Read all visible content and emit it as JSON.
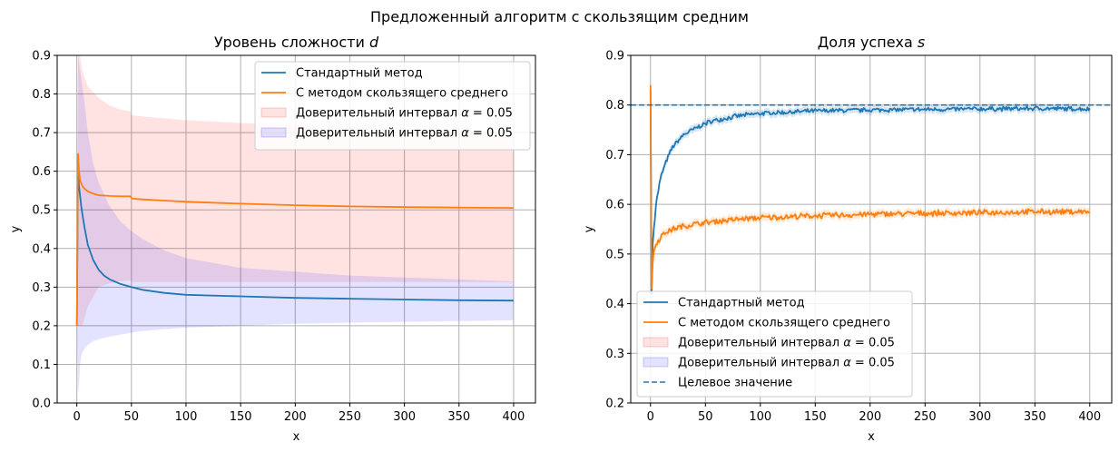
{
  "suptitle": "Предложенный алгоритм с скользящим средним",
  "colors": {
    "standard": "#1f77b4",
    "moving_average": "#ff7f0e",
    "ci_red": "#ff0000",
    "ci_blue": "#0000ff",
    "grid": "#b0b0b0"
  },
  "chart_data": [
    {
      "type": "line",
      "title": "Уровень сложности d",
      "title_text": "Уровень сложности",
      "title_var": "d",
      "xlabel": "x",
      "ylabel": "y",
      "xlim": [
        -18,
        420
      ],
      "ylim": [
        0.0,
        0.9
      ],
      "xticks": [
        0,
        50,
        100,
        150,
        200,
        250,
        300,
        350,
        400
      ],
      "yticks": [
        0.0,
        0.1,
        0.2,
        0.3,
        0.4,
        0.5,
        0.6,
        0.7,
        0.8,
        0.9
      ],
      "ytick_labels": [
        "0.0",
        "0.1",
        "0.2",
        "0.3",
        "0.4",
        "0.5",
        "0.6",
        "0.7",
        "0.8",
        "0.9"
      ],
      "grid": true,
      "legend_position": "upper right",
      "legend": [
        {
          "label": "Стандартный метод",
          "kind": "line",
          "color_key": "standard"
        },
        {
          "label": "С методом скользящего среднего",
          "kind": "line",
          "color_key": "moving_average"
        },
        {
          "label": "Доверительный интервал α = 0.05",
          "kind": "band",
          "color_key": "ci_red"
        },
        {
          "label": "Доверительный интервал α = 0.05",
          "kind": "band",
          "color_key": "ci_blue"
        }
      ],
      "series": [
        {
          "name": "Стандартный метод",
          "color_key": "standard",
          "x": [
            0,
            1,
            2,
            3,
            4,
            5,
            7,
            10,
            15,
            20,
            25,
            30,
            40,
            50,
            60,
            80,
            100,
            150,
            200,
            250,
            300,
            350,
            400
          ],
          "values": [
            0.2,
            0.6,
            0.56,
            0.535,
            0.51,
            0.49,
            0.455,
            0.41,
            0.37,
            0.345,
            0.33,
            0.32,
            0.308,
            0.3,
            0.293,
            0.285,
            0.28,
            0.276,
            0.272,
            0.27,
            0.268,
            0.266,
            0.265
          ]
        },
        {
          "name": "С методом скользящего среднего",
          "color_key": "moving_average",
          "x": [
            0,
            1,
            2,
            3,
            5,
            7,
            10,
            15,
            20,
            30,
            40,
            49,
            50,
            51,
            60,
            80,
            100,
            150,
            200,
            250,
            300,
            350,
            400
          ],
          "values": [
            0.2,
            0.645,
            0.6,
            0.575,
            0.562,
            0.555,
            0.548,
            0.542,
            0.538,
            0.536,
            0.535,
            0.535,
            0.531,
            0.529,
            0.527,
            0.524,
            0.521,
            0.516,
            0.512,
            0.509,
            0.507,
            0.506,
            0.505
          ]
        }
      ],
      "bands": [
        {
          "name": "Доверительный интервал α = 0.05",
          "color_key": "ci_red",
          "x": [
            0,
            1,
            2,
            3,
            5,
            10,
            20,
            30,
            40,
            49,
            50,
            51,
            60,
            80,
            100,
            150,
            200,
            250,
            300,
            350,
            400
          ],
          "lower": [
            0.2,
            0.2,
            0.2,
            0.2,
            0.2,
            0.25,
            0.3,
            0.31,
            0.315,
            0.318,
            0.315,
            0.313,
            0.313,
            0.313,
            0.313,
            0.313,
            0.313,
            0.313,
            0.313,
            0.313,
            0.313
          ],
          "upper": [
            0.2,
            0.9,
            0.9,
            0.9,
            0.86,
            0.82,
            0.79,
            0.77,
            0.76,
            0.755,
            0.747,
            0.745,
            0.742,
            0.737,
            0.732,
            0.725,
            0.72,
            0.715,
            0.71,
            0.705,
            0.7
          ]
        },
        {
          "name": "Доверительный интервал α = 0.05",
          "color_key": "ci_blue",
          "x": [
            0,
            1,
            2,
            3,
            4,
            5,
            7,
            10,
            15,
            20,
            30,
            40,
            50,
            60,
            80,
            100,
            150,
            200,
            250,
            300,
            350,
            400
          ],
          "lower": [
            0.2,
            0.02,
            0.05,
            0.1,
            0.12,
            0.13,
            0.14,
            0.15,
            0.16,
            0.165,
            0.172,
            0.177,
            0.182,
            0.186,
            0.191,
            0.195,
            0.2,
            0.205,
            0.208,
            0.21,
            0.212,
            0.214
          ],
          "upper": [
            0.2,
            0.9,
            0.88,
            0.86,
            0.84,
            0.82,
            0.78,
            0.7,
            0.62,
            0.57,
            0.51,
            0.47,
            0.445,
            0.425,
            0.395,
            0.375,
            0.35,
            0.34,
            0.33,
            0.325,
            0.32,
            0.315
          ]
        }
      ]
    },
    {
      "type": "line",
      "title": "Доля успеха s",
      "title_text": "Доля успеха",
      "title_var": "s",
      "xlabel": "x",
      "ylabel": "y",
      "xlim": [
        -18,
        420
      ],
      "ylim": [
        0.2,
        0.9
      ],
      "xticks": [
        0,
        50,
        100,
        150,
        200,
        250,
        300,
        350,
        400
      ],
      "yticks": [
        0.2,
        0.3,
        0.4,
        0.5,
        0.6,
        0.7,
        0.8,
        0.9
      ],
      "ytick_labels": [
        "0.2",
        "0.3",
        "0.4",
        "0.5",
        "0.6",
        "0.7",
        "0.8",
        "0.9"
      ],
      "grid": true,
      "legend_position": "lower left",
      "legend": [
        {
          "label": "Стандартный метод",
          "kind": "line",
          "color_key": "standard"
        },
        {
          "label": "С методом скользящего среднего",
          "kind": "line",
          "color_key": "moving_average"
        },
        {
          "label": "Доверительный интервал α = 0.05",
          "kind": "band",
          "color_key": "ci_red"
        },
        {
          "label": "Доверительный интервал α = 0.05",
          "kind": "band",
          "color_key": "ci_blue"
        },
        {
          "label": "Целевое значение",
          "kind": "dashed",
          "color_key": "standard"
        }
      ],
      "hline": {
        "name": "Целевое значение",
        "y": 0.8
      },
      "series": [
        {
          "name": "Стандартный метод",
          "color_key": "standard",
          "noise": 0.004,
          "x": [
            0,
            1,
            2,
            3,
            5,
            8,
            10,
            15,
            20,
            30,
            40,
            50,
            60,
            80,
            100,
            150,
            200,
            250,
            300,
            350,
            400
          ],
          "values": [
            0.83,
            0.42,
            0.52,
            0.55,
            0.6,
            0.64,
            0.66,
            0.69,
            0.715,
            0.74,
            0.752,
            0.763,
            0.77,
            0.778,
            0.783,
            0.788,
            0.79,
            0.791,
            0.792,
            0.793,
            0.792
          ]
        },
        {
          "name": "С методом скользящего среднего",
          "color_key": "moving_average",
          "noise": 0.005,
          "x": [
            0,
            1,
            2,
            3,
            5,
            10,
            15,
            20,
            30,
            40,
            50,
            60,
            80,
            100,
            150,
            200,
            250,
            300,
            350,
            400
          ],
          "values": [
            0.84,
            0.43,
            0.48,
            0.505,
            0.52,
            0.537,
            0.545,
            0.55,
            0.556,
            0.56,
            0.563,
            0.566,
            0.57,
            0.573,
            0.577,
            0.58,
            0.582,
            0.583,
            0.585,
            0.585
          ]
        }
      ]
    }
  ]
}
